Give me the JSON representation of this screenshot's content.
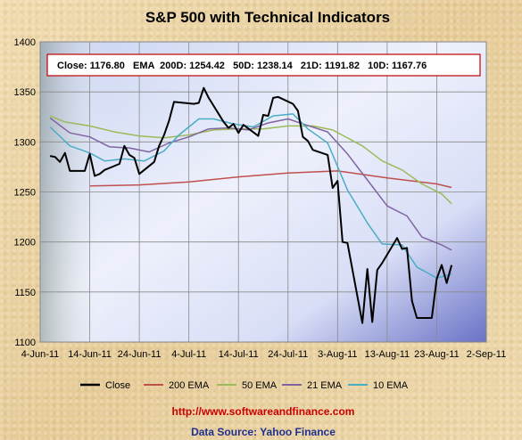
{
  "chart_data": {
    "type": "line",
    "title": "S&P 500 with Technical Indicators",
    "ylim": [
      1100,
      1400
    ],
    "yticks": [
      "1100",
      "1150",
      "1200",
      "1250",
      "1300",
      "1350",
      "1400"
    ],
    "xticks": [
      "4-Jun-11",
      "14-Jun-11",
      "24-Jun-11",
      "4-Jul-11",
      "14-Jul-11",
      "24-Jul-11",
      "3-Aug-11",
      "13-Aug-11",
      "23-Aug-11",
      "2-Sep-11"
    ],
    "xlim": [
      "2011-06-04",
      "2011-09-02"
    ],
    "summary_box": "Close: 1176.80   EMA  200D: 1254.42   50D: 1238.14   21D: 1191.82   10D: 1167.76",
    "series": [
      {
        "name": "Close",
        "color": "#000000",
        "width": 2,
        "points": [
          [
            "2011-06-06",
            1286
          ],
          [
            "2011-06-07",
            1285
          ],
          [
            "2011-06-08",
            1280
          ],
          [
            "2011-06-09",
            1289
          ],
          [
            "2011-06-10",
            1271
          ],
          [
            "2011-06-13",
            1271
          ],
          [
            "2011-06-14",
            1288
          ],
          [
            "2011-06-15",
            1266
          ],
          [
            "2011-06-16",
            1268
          ],
          [
            "2011-06-17",
            1272
          ],
          [
            "2011-06-20",
            1278
          ],
          [
            "2011-06-21",
            1296
          ],
          [
            "2011-06-22",
            1287
          ],
          [
            "2011-06-23",
            1284
          ],
          [
            "2011-06-24",
            1268
          ],
          [
            "2011-06-27",
            1280
          ],
          [
            "2011-06-28",
            1296
          ],
          [
            "2011-06-29",
            1307
          ],
          [
            "2011-06-30",
            1321
          ],
          [
            "2011-07-01",
            1340
          ],
          [
            "2011-07-05",
            1338
          ],
          [
            "2011-07-06",
            1339
          ],
          [
            "2011-07-07",
            1354
          ],
          [
            "2011-07-08",
            1344
          ],
          [
            "2011-07-11",
            1320
          ],
          [
            "2011-07-12",
            1314
          ],
          [
            "2011-07-13",
            1318
          ],
          [
            "2011-07-14",
            1309
          ],
          [
            "2011-07-15",
            1317
          ],
          [
            "2011-07-18",
            1306
          ],
          [
            "2011-07-19",
            1327
          ],
          [
            "2011-07-20",
            1326
          ],
          [
            "2011-07-21",
            1344
          ],
          [
            "2011-07-22",
            1345
          ],
          [
            "2011-07-25",
            1338
          ],
          [
            "2011-07-26",
            1331
          ],
          [
            "2011-07-27",
            1305
          ],
          [
            "2011-07-28",
            1301
          ],
          [
            "2011-07-29",
            1292
          ],
          [
            "2011-08-01",
            1287
          ],
          [
            "2011-08-02",
            1254
          ],
          [
            "2011-08-03",
            1261
          ],
          [
            "2011-08-04",
            1200
          ],
          [
            "2011-08-05",
            1199
          ],
          [
            "2011-08-08",
            1119
          ],
          [
            "2011-08-09",
            1173
          ],
          [
            "2011-08-10",
            1120
          ],
          [
            "2011-08-11",
            1172
          ],
          [
            "2011-08-12",
            1179
          ],
          [
            "2011-08-15",
            1204
          ],
          [
            "2011-08-16",
            1193
          ],
          [
            "2011-08-17",
            1194
          ],
          [
            "2011-08-18",
            1141
          ],
          [
            "2011-08-19",
            1124
          ],
          [
            "2011-08-22",
            1124
          ],
          [
            "2011-08-23",
            1163
          ],
          [
            "2011-08-24",
            1177
          ],
          [
            "2011-08-25",
            1159
          ],
          [
            "2011-08-26",
            1176.8
          ]
        ]
      },
      {
        "name": "200 EMA",
        "color": "#c0504d",
        "width": 1.5,
        "points": [
          [
            "2011-06-14",
            1256
          ],
          [
            "2011-06-24",
            1257
          ],
          [
            "2011-07-04",
            1260
          ],
          [
            "2011-07-14",
            1265
          ],
          [
            "2011-07-24",
            1269
          ],
          [
            "2011-08-03",
            1271
          ],
          [
            "2011-08-13",
            1264
          ],
          [
            "2011-08-23",
            1258
          ],
          [
            "2011-08-26",
            1254.42
          ]
        ]
      },
      {
        "name": "50 EMA",
        "color": "#9bbb59",
        "width": 1.5,
        "points": [
          [
            "2011-06-06",
            1326
          ],
          [
            "2011-06-09",
            1320
          ],
          [
            "2011-06-14",
            1316
          ],
          [
            "2011-06-19",
            1310
          ],
          [
            "2011-06-24",
            1306
          ],
          [
            "2011-06-29",
            1304
          ],
          [
            "2011-07-04",
            1307
          ],
          [
            "2011-07-09",
            1312
          ],
          [
            "2011-07-14",
            1313
          ],
          [
            "2011-07-19",
            1313
          ],
          [
            "2011-07-24",
            1316
          ],
          [
            "2011-07-29",
            1316
          ],
          [
            "2011-08-02",
            1312
          ],
          [
            "2011-08-08",
            1296
          ],
          [
            "2011-08-12",
            1281
          ],
          [
            "2011-08-16",
            1272
          ],
          [
            "2011-08-20",
            1258
          ],
          [
            "2011-08-24",
            1248
          ],
          [
            "2011-08-26",
            1238.14
          ]
        ]
      },
      {
        "name": "21 EMA",
        "color": "#8064a2",
        "width": 1.5,
        "points": [
          [
            "2011-06-06",
            1324
          ],
          [
            "2011-06-10",
            1309
          ],
          [
            "2011-06-14",
            1305
          ],
          [
            "2011-06-18",
            1295
          ],
          [
            "2011-06-22",
            1294
          ],
          [
            "2011-06-26",
            1290
          ],
          [
            "2011-06-30",
            1299
          ],
          [
            "2011-07-04",
            1305
          ],
          [
            "2011-07-08",
            1313
          ],
          [
            "2011-07-12",
            1314
          ],
          [
            "2011-07-16",
            1312
          ],
          [
            "2011-07-20",
            1319
          ],
          [
            "2011-07-24",
            1323
          ],
          [
            "2011-07-27",
            1318
          ],
          [
            "2011-08-01",
            1310
          ],
          [
            "2011-08-05",
            1288
          ],
          [
            "2011-08-09",
            1262
          ],
          [
            "2011-08-13",
            1236
          ],
          [
            "2011-08-17",
            1226
          ],
          [
            "2011-08-20",
            1205
          ],
          [
            "2011-08-24",
            1197
          ],
          [
            "2011-08-26",
            1191.82
          ]
        ]
      },
      {
        "name": "10 EMA",
        "color": "#4bacc6",
        "width": 1.5,
        "points": [
          [
            "2011-06-06",
            1315
          ],
          [
            "2011-06-10",
            1296
          ],
          [
            "2011-06-14",
            1289
          ],
          [
            "2011-06-17",
            1281
          ],
          [
            "2011-06-21",
            1283
          ],
          [
            "2011-06-25",
            1281
          ],
          [
            "2011-06-29",
            1291
          ],
          [
            "2011-07-02",
            1307
          ],
          [
            "2011-07-06",
            1323
          ],
          [
            "2011-07-09",
            1323
          ],
          [
            "2011-07-13",
            1318
          ],
          [
            "2011-07-17",
            1315
          ],
          [
            "2011-07-21",
            1326
          ],
          [
            "2011-07-25",
            1328
          ],
          [
            "2011-07-28",
            1313
          ],
          [
            "2011-08-01",
            1299
          ],
          [
            "2011-08-05",
            1252
          ],
          [
            "2011-08-09",
            1219
          ],
          [
            "2011-08-12",
            1198
          ],
          [
            "2011-08-16",
            1197
          ],
          [
            "2011-08-19",
            1175
          ],
          [
            "2011-08-23",
            1164
          ],
          [
            "2011-08-26",
            1167.76
          ]
        ]
      }
    ],
    "legend": [
      "Close",
      "200 EMA",
      "50 EMA",
      "21 EMA",
      "10 EMA"
    ],
    "legend_position": "bottom"
  },
  "footer": {
    "url": "http://www.softwareandfinance.com",
    "source": "Data Source: Yahoo Finance"
  }
}
